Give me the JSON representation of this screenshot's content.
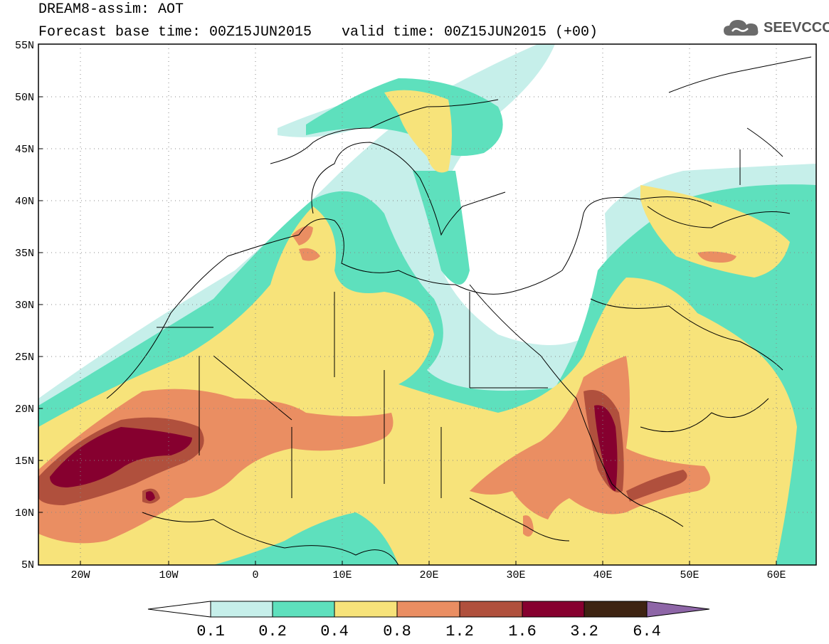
{
  "title": {
    "line1": "DREAM8-assim: AOT",
    "line2": "Forecast base time: 00Z15JUN2015",
    "valid": "valid time: 00Z15JUN2015 (+00)"
  },
  "logo": {
    "text": "SEEVCCC",
    "icon": "cloud-icon"
  },
  "axes": {
    "lon_ticks": [
      "20W",
      "10W",
      "0",
      "10E",
      "20E",
      "30E",
      "40E",
      "50E",
      "60E"
    ],
    "lat_ticks": [
      "55N",
      "50N",
      "45N",
      "40N",
      "35N",
      "30N",
      "25N",
      "20N",
      "15N",
      "10N",
      "5N"
    ]
  },
  "colorbar": {
    "labels": [
      "0.1",
      "0.2",
      "0.4",
      "0.8",
      "1.2",
      "1.6",
      "3.2",
      "6.4"
    ],
    "colors": [
      "#ffffff",
      "#c6efea",
      "#5ee0bd",
      "#f7e37a",
      "#ea8e62",
      "#b0503d",
      "#86002f",
      "#3e2412",
      "#8e66a7"
    ]
  },
  "colors": {
    "c01": "#c6efea",
    "c02": "#5ee0bd",
    "c04": "#f7e37a",
    "c08": "#ea8e62",
    "c12": "#b0503d",
    "c16": "#86002f",
    "c32": "#3e2412"
  }
}
